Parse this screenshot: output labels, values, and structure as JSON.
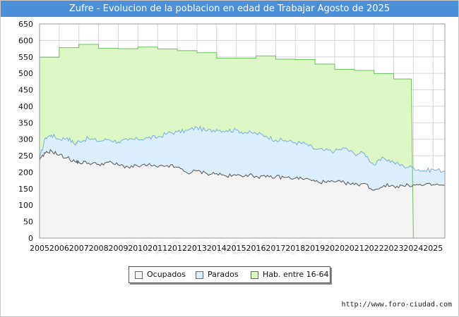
{
  "title": "Zufre - Evolucion de la poblacion en edad de Trabajar Agosto de 2025",
  "source": "http://www.foro-ciudad.com",
  "watermark": "FORO-CIUDAD.COM",
  "colors": {
    "title_bg": "#4a8fd8",
    "hab_fill": "#ddf7c6",
    "hab_line": "#6fbf5f",
    "parados_fill": "#ddeefc",
    "parados_line": "#7aaee0",
    "ocupados_fill": "#f4f4f4",
    "ocupados_line": "#555555",
    "grid": "#d6d6d6"
  },
  "chart_data": {
    "type": "area",
    "title": "Zufre - Evolucion de la poblacion en edad de Trabajar Agosto de 2025",
    "xlabel": "",
    "ylabel": "",
    "ylim": [
      0,
      650
    ],
    "yticks": [
      0,
      50,
      100,
      150,
      200,
      250,
      300,
      350,
      400,
      450,
      500,
      550,
      600,
      650
    ],
    "xlim": [
      2005,
      2025.6
    ],
    "xticks": [
      "2005",
      "2006",
      "2007",
      "2008",
      "2009",
      "2010",
      "2011",
      "2012",
      "2013",
      "2014",
      "2015",
      "2016",
      "2017",
      "2018",
      "2019",
      "2020",
      "2021",
      "2022",
      "2023",
      "2024",
      "2025"
    ],
    "grid": true,
    "legend_position": "bottom-center",
    "legend": [
      "Ocupados",
      "Parados",
      "Hab. entre 16-64"
    ],
    "series": [
      {
        "name": "Hab. entre 16-64",
        "step": true,
        "x": [
          2005,
          2006,
          2007,
          2008,
          2009,
          2010,
          2011,
          2012,
          2013,
          2014,
          2015,
          2016,
          2017,
          2018,
          2019,
          2020,
          2021,
          2022,
          2023,
          2024
        ],
        "values": [
          549,
          578,
          588,
          576,
          575,
          580,
          574,
          569,
          563,
          546,
          546,
          553,
          543,
          542,
          528,
          512,
          509,
          499,
          483,
          0
        ]
      },
      {
        "name": "Parados",
        "points": [
          [
            2005,
            240
          ],
          [
            2005.3,
            305
          ],
          [
            2005.6,
            313
          ],
          [
            2006,
            300
          ],
          [
            2006.4,
            305
          ],
          [
            2006.8,
            285
          ],
          [
            2007,
            295
          ],
          [
            2007.5,
            302
          ],
          [
            2008,
            294
          ],
          [
            2008.5,
            300
          ],
          [
            2009,
            292
          ],
          [
            2009.5,
            297
          ],
          [
            2010,
            300
          ],
          [
            2010.5,
            304
          ],
          [
            2011,
            306
          ],
          [
            2011.5,
            318
          ],
          [
            2012,
            322
          ],
          [
            2012.5,
            326
          ],
          [
            2013,
            336
          ],
          [
            2013.5,
            325
          ],
          [
            2014,
            330
          ],
          [
            2014.5,
            326
          ],
          [
            2015,
            328
          ],
          [
            2015.5,
            320
          ],
          [
            2016,
            318
          ],
          [
            2016.5,
            310
          ],
          [
            2017,
            298
          ],
          [
            2017.5,
            296
          ],
          [
            2018,
            290
          ],
          [
            2018.5,
            286
          ],
          [
            2019,
            270
          ],
          [
            2019.5,
            266
          ],
          [
            2020,
            264
          ],
          [
            2020.5,
            273
          ],
          [
            2021,
            256
          ],
          [
            2021.5,
            258
          ],
          [
            2022,
            222
          ],
          [
            2022.5,
            243
          ],
          [
            2023,
            230
          ],
          [
            2023.5,
            218
          ],
          [
            2024,
            214
          ],
          [
            2024.5,
            204
          ],
          [
            2025,
            208
          ],
          [
            2025.6,
            204
          ]
        ]
      },
      {
        "name": "Ocupados",
        "points": [
          [
            2005,
            236
          ],
          [
            2005.3,
            258
          ],
          [
            2005.6,
            265
          ],
          [
            2006,
            252
          ],
          [
            2006.4,
            244
          ],
          [
            2006.8,
            232
          ],
          [
            2007,
            230
          ],
          [
            2007.5,
            228
          ],
          [
            2008,
            224
          ],
          [
            2008.5,
            230
          ],
          [
            2009,
            222
          ],
          [
            2009.5,
            216
          ],
          [
            2010,
            218
          ],
          [
            2010.5,
            222
          ],
          [
            2011,
            215
          ],
          [
            2011.5,
            220
          ],
          [
            2012,
            215
          ],
          [
            2012.5,
            198
          ],
          [
            2013,
            204
          ],
          [
            2013.5,
            196
          ],
          [
            2014,
            196
          ],
          [
            2014.5,
            188
          ],
          [
            2015,
            190
          ],
          [
            2015.5,
            192
          ],
          [
            2016,
            188
          ],
          [
            2016.5,
            185
          ],
          [
            2017,
            186
          ],
          [
            2017.5,
            184
          ],
          [
            2018,
            182
          ],
          [
            2018.5,
            180
          ],
          [
            2019,
            172
          ],
          [
            2019.5,
            170
          ],
          [
            2020,
            170
          ],
          [
            2020.5,
            168
          ],
          [
            2021,
            162
          ],
          [
            2021.5,
            166
          ],
          [
            2022,
            145
          ],
          [
            2022.5,
            160
          ],
          [
            2023,
            158
          ],
          [
            2023.5,
            158
          ],
          [
            2024,
            162
          ],
          [
            2024.5,
            160
          ],
          [
            2025,
            162
          ],
          [
            2025.6,
            160
          ]
        ]
      }
    ]
  }
}
